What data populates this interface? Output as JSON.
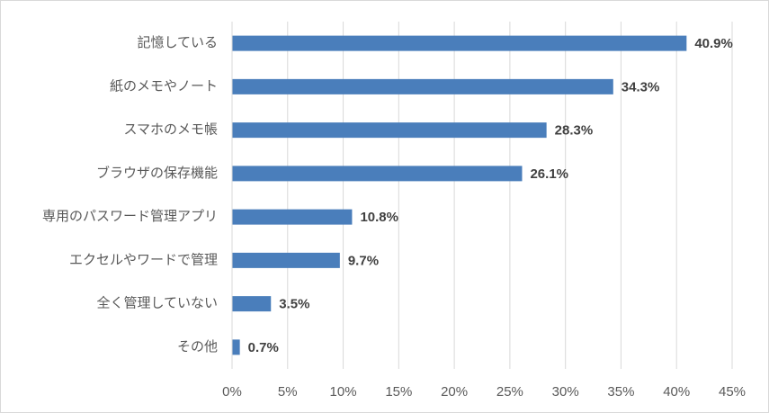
{
  "chart_data": {
    "type": "hbar",
    "categories": [
      "記憶している",
      "紙のメモやノート",
      "スマホのメモ帳",
      "ブラウザの保存機能",
      "専用のパスワード管理アプリ",
      "エクセルやワードで管理",
      "全く管理していない",
      "その他"
    ],
    "values": [
      40.9,
      34.3,
      28.3,
      26.1,
      10.8,
      9.7,
      3.5,
      0.7
    ],
    "value_labels": [
      "40.9%",
      "34.3%",
      "28.3%",
      "26.1%",
      "10.8%",
      "9.7%",
      "3.5%",
      "0.7%"
    ],
    "color": "#4a7ebb",
    "xlim": [
      0,
      45
    ],
    "xticks": [
      {
        "value": 0,
        "label": "0%"
      },
      {
        "value": 5,
        "label": "5%"
      },
      {
        "value": 10,
        "label": "10%"
      },
      {
        "value": 15,
        "label": "15%"
      },
      {
        "value": 20,
        "label": "20%"
      },
      {
        "value": 25,
        "label": "25%"
      },
      {
        "value": 30,
        "label": "30%"
      },
      {
        "value": 35,
        "label": "35%"
      },
      {
        "value": 40,
        "label": "40%"
      },
      {
        "value": 45,
        "label": "45%"
      }
    ],
    "grid": true
  }
}
